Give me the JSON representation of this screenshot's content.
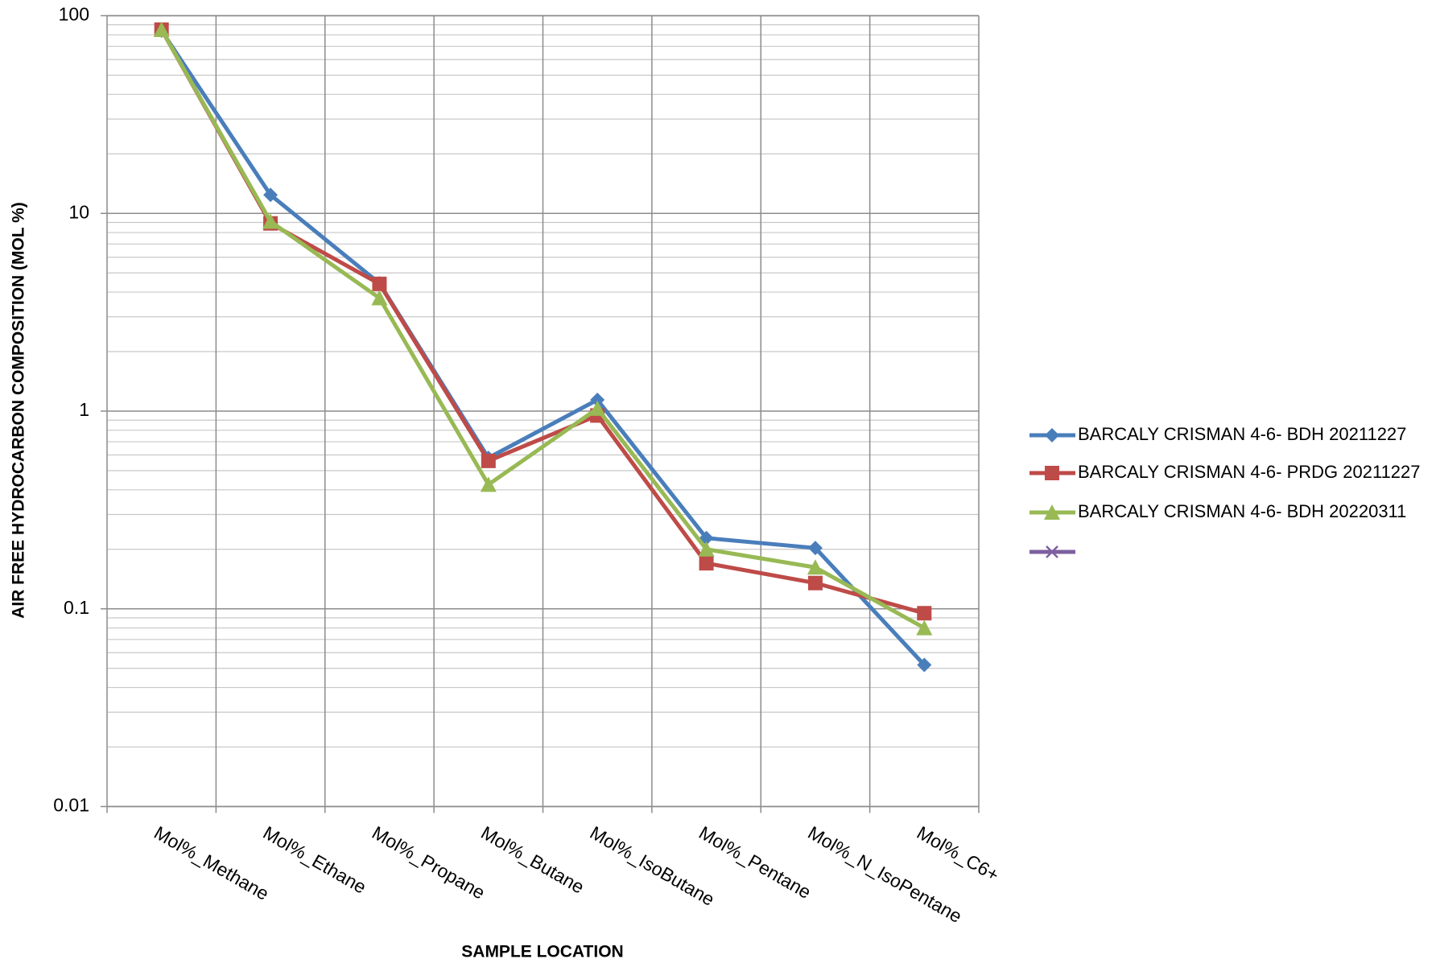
{
  "chart_data": {
    "type": "line",
    "y_label": "AIR FREE HYDROCARBON COMPOSITION (MOL %)",
    "x_label": "SAMPLE LOCATION",
    "categories": [
      "Mol%_Methane",
      "Mol%_Ethane",
      "Mol%_Propane",
      "Mol%_Butane",
      "Mol%_IsoButane",
      "Mol%_Pentane",
      "Mol%_N_IsoPentane",
      "Mol%_C6+"
    ],
    "y_scale": "log",
    "ylim": [
      0.01,
      100
    ],
    "yticks": [
      0.01,
      0.1,
      1,
      10,
      100
    ],
    "grid": true,
    "minor_grid": true,
    "legend": "right",
    "series": [
      {
        "name": "BARCALY CRISMAN 4-6- BDH 20211227",
        "color": "#4a7ebb",
        "marker": "diamond",
        "values": [
          84,
          12.4,
          4.43,
          0.58,
          1.14,
          0.228,
          0.203,
          0.052
        ]
      },
      {
        "name": "BARCALY CRISMAN 4-6- PRDG 20211227",
        "color": "#be4b48",
        "marker": "square",
        "values": [
          85,
          8.9,
          4.4,
          0.56,
          0.95,
          0.17,
          0.135,
          0.095
        ]
      },
      {
        "name": "BARCALY CRISMAN 4-6- BDH 20220311",
        "color": "#98b954",
        "marker": "triangle",
        "values": [
          85,
          9.1,
          3.73,
          0.425,
          1.03,
          0.2,
          0.162,
          0.08
        ]
      },
      {
        "color": "#7d60a0",
        "marker": "x",
        "values": [
          null,
          null,
          null,
          null,
          null,
          null,
          null,
          null
        ]
      }
    ]
  }
}
